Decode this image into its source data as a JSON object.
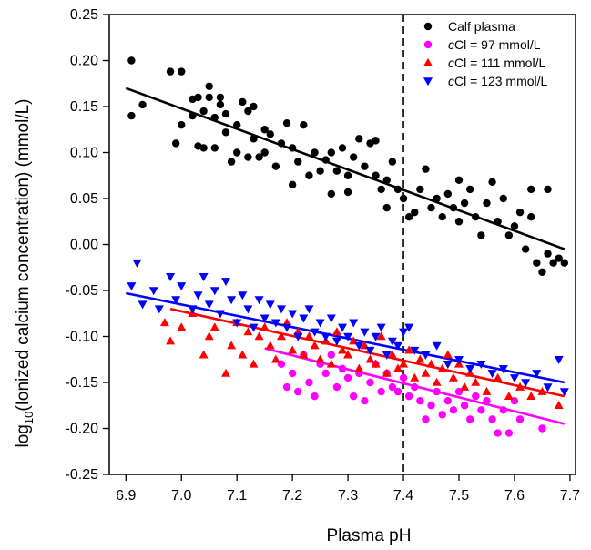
{
  "chart_data": {
    "type": "scatter",
    "xlabel": "Plasma pH",
    "ylabel": {
      "prefix": "log",
      "sub": "10",
      "suffix": "(Ionized calcium concentration) (mmol/L)"
    },
    "xlim": [
      6.87,
      7.71
    ],
    "ylim": [
      -0.25,
      0.25
    ],
    "xticks": [
      "6.9",
      "7.0",
      "7.1",
      "7.2",
      "7.3",
      "7.4",
      "7.5",
      "7.6",
      "7.7"
    ],
    "yticks": [
      "-0.25",
      "-0.20",
      "-0.15",
      "-0.10",
      "-0.05",
      "0.00",
      "0.05",
      "0.10",
      "0.15",
      "0.20",
      "0.25"
    ],
    "grid": false,
    "legend_position": "top-right",
    "reference_line": {
      "x": 7.4,
      "style": "dashed",
      "color": "#000000"
    },
    "series": [
      {
        "legend": {
          "italic": "",
          "text": "Calf plasma"
        },
        "marker": "circle",
        "color": "#000000",
        "fit": {
          "x": [
            6.9,
            7.69
          ],
          "y": [
            0.17,
            -0.005
          ]
        },
        "points": [
          [
            6.91,
            0.2
          ],
          [
            6.91,
            0.14
          ],
          [
            6.93,
            0.152
          ],
          [
            6.98,
            0.188
          ],
          [
            6.99,
            0.11
          ],
          [
            7.0,
            0.188
          ],
          [
            7.0,
            0.13
          ],
          [
            7.02,
            0.14
          ],
          [
            7.02,
            0.158
          ],
          [
            7.03,
            0.107
          ],
          [
            7.03,
            0.16
          ],
          [
            7.04,
            0.105
          ],
          [
            7.04,
            0.145
          ],
          [
            7.05,
            0.172
          ],
          [
            7.05,
            0.16
          ],
          [
            7.06,
            0.105
          ],
          [
            7.06,
            0.138
          ],
          [
            7.07,
            0.16
          ],
          [
            7.07,
            0.152
          ],
          [
            7.08,
            0.122
          ],
          [
            7.08,
            0.142
          ],
          [
            7.09,
            0.09
          ],
          [
            7.1,
            0.1
          ],
          [
            7.1,
            0.13
          ],
          [
            7.11,
            0.155
          ],
          [
            7.12,
            0.095
          ],
          [
            7.12,
            0.145
          ],
          [
            7.13,
            0.15
          ],
          [
            7.13,
            0.115
          ],
          [
            7.14,
            0.095
          ],
          [
            7.15,
            0.125
          ],
          [
            7.15,
            0.1
          ],
          [
            7.16,
            0.12
          ],
          [
            7.17,
            0.085
          ],
          [
            7.18,
            0.11
          ],
          [
            7.19,
            0.132
          ],
          [
            7.2,
            0.105
          ],
          [
            7.2,
            0.065
          ],
          [
            7.21,
            0.09
          ],
          [
            7.22,
            0.13
          ],
          [
            7.23,
            0.075
          ],
          [
            7.24,
            0.1
          ],
          [
            7.25,
            0.08
          ],
          [
            7.26,
            0.092
          ],
          [
            7.27,
            0.1
          ],
          [
            7.27,
            0.055
          ],
          [
            7.28,
            0.08
          ],
          [
            7.29,
            0.105
          ],
          [
            7.3,
            0.075
          ],
          [
            7.3,
            0.057
          ],
          [
            7.31,
            0.095
          ],
          [
            7.32,
            0.115
          ],
          [
            7.33,
            0.085
          ],
          [
            7.34,
            0.11
          ],
          [
            7.35,
            0.113
          ],
          [
            7.35,
            0.075
          ],
          [
            7.36,
            0.06
          ],
          [
            7.37,
            0.07
          ],
          [
            7.37,
            0.04
          ],
          [
            7.38,
            0.09
          ],
          [
            7.39,
            0.06
          ],
          [
            7.4,
            0.05
          ],
          [
            7.41,
            0.03
          ],
          [
            7.42,
            0.035
          ],
          [
            7.43,
            0.06
          ],
          [
            7.44,
            0.082
          ],
          [
            7.45,
            0.04
          ],
          [
            7.46,
            0.05
          ],
          [
            7.47,
            0.03
          ],
          [
            7.48,
            0.055
          ],
          [
            7.49,
            0.04
          ],
          [
            7.5,
            0.07
          ],
          [
            7.5,
            0.025
          ],
          [
            7.51,
            0.045
          ],
          [
            7.52,
            0.06
          ],
          [
            7.53,
            0.03
          ],
          [
            7.54,
            0.01
          ],
          [
            7.55,
            0.045
          ],
          [
            7.56,
            0.068
          ],
          [
            7.57,
            0.025
          ],
          [
            7.58,
            0.05
          ],
          [
            7.59,
            0.01
          ],
          [
            7.6,
            0.02
          ],
          [
            7.61,
            0.035
          ],
          [
            7.62,
            -0.005
          ],
          [
            7.63,
            0.06
          ],
          [
            7.63,
            0.03
          ],
          [
            7.64,
            -0.02
          ],
          [
            7.65,
            -0.03
          ],
          [
            7.66,
            0.06
          ],
          [
            7.66,
            -0.01
          ],
          [
            7.67,
            -0.02
          ],
          [
            7.68,
            -0.015
          ],
          [
            7.69,
            -0.02
          ]
        ]
      },
      {
        "legend": {
          "italic": "c",
          "text": "Cl = 97 mmol/L"
        },
        "marker": "circle",
        "color": "#ff00ff",
        "fit": {
          "x": [
            7.15,
            7.69
          ],
          "y": [
            -0.113,
            -0.195
          ]
        },
        "points": [
          [
            7.18,
            -0.13
          ],
          [
            7.19,
            -0.155
          ],
          [
            7.2,
            -0.14
          ],
          [
            7.21,
            -0.16
          ],
          [
            7.22,
            -0.12
          ],
          [
            7.23,
            -0.15
          ],
          [
            7.24,
            -0.165
          ],
          [
            7.25,
            -0.13
          ],
          [
            7.26,
            -0.14
          ],
          [
            7.27,
            -0.12
          ],
          [
            7.28,
            -0.155
          ],
          [
            7.29,
            -0.135
          ],
          [
            7.3,
            -0.145
          ],
          [
            7.31,
            -0.165
          ],
          [
            7.32,
            -0.14
          ],
          [
            7.33,
            -0.17
          ],
          [
            7.34,
            -0.15
          ],
          [
            7.35,
            -0.13
          ],
          [
            7.36,
            -0.16
          ],
          [
            7.37,
            -0.14
          ],
          [
            7.38,
            -0.155
          ],
          [
            7.39,
            -0.16
          ],
          [
            7.4,
            -0.145
          ],
          [
            7.41,
            -0.165
          ],
          [
            7.42,
            -0.155
          ],
          [
            7.43,
            -0.17
          ],
          [
            7.44,
            -0.19
          ],
          [
            7.45,
            -0.175
          ],
          [
            7.46,
            -0.16
          ],
          [
            7.47,
            -0.185
          ],
          [
            7.48,
            -0.17
          ],
          [
            7.49,
            -0.18
          ],
          [
            7.5,
            -0.16
          ],
          [
            7.51,
            -0.175
          ],
          [
            7.52,
            -0.19
          ],
          [
            7.53,
            -0.165
          ],
          [
            7.54,
            -0.18
          ],
          [
            7.55,
            -0.17
          ],
          [
            7.56,
            -0.19
          ],
          [
            7.57,
            -0.205
          ],
          [
            7.58,
            -0.18
          ],
          [
            7.59,
            -0.205
          ],
          [
            7.6,
            -0.17
          ],
          [
            7.61,
            -0.19
          ],
          [
            7.65,
            -0.2
          ]
        ]
      },
      {
        "legend": {
          "italic": "c",
          "text": "Cl = 111 mmol/L"
        },
        "marker": "triangle-up",
        "color": "#ff0000",
        "fit": {
          "x": [
            6.98,
            7.69
          ],
          "y": [
            -0.07,
            -0.165
          ]
        },
        "points": [
          [
            6.97,
            -0.085
          ],
          [
            6.98,
            -0.105
          ],
          [
            7.0,
            -0.09
          ],
          [
            7.02,
            -0.075
          ],
          [
            7.04,
            -0.12
          ],
          [
            7.05,
            -0.1
          ],
          [
            7.06,
            -0.09
          ],
          [
            7.08,
            -0.14
          ],
          [
            7.09,
            -0.11
          ],
          [
            7.1,
            -0.085
          ],
          [
            7.11,
            -0.12
          ],
          [
            7.12,
            -0.095
          ],
          [
            7.13,
            -0.13
          ],
          [
            7.14,
            -0.1
          ],
          [
            7.15,
            -0.09
          ],
          [
            7.16,
            -0.11
          ],
          [
            7.17,
            -0.125
          ],
          [
            7.18,
            -0.1
          ],
          [
            7.19,
            -0.085
          ],
          [
            7.2,
            -0.115
          ],
          [
            7.21,
            -0.095
          ],
          [
            7.22,
            -0.12
          ],
          [
            7.23,
            -0.1
          ],
          [
            7.24,
            -0.11
          ],
          [
            7.25,
            -0.125
          ],
          [
            7.26,
            -0.105
          ],
          [
            7.27,
            -0.13
          ],
          [
            7.28,
            -0.095
          ],
          [
            7.29,
            -0.115
          ],
          [
            7.3,
            -0.12
          ],
          [
            7.31,
            -0.105
          ],
          [
            7.32,
            -0.135
          ],
          [
            7.33,
            -0.11
          ],
          [
            7.34,
            -0.125
          ],
          [
            7.35,
            -0.13
          ],
          [
            7.36,
            -0.1
          ],
          [
            7.37,
            -0.14
          ],
          [
            7.38,
            -0.12
          ],
          [
            7.39,
            -0.135
          ],
          [
            7.4,
            -0.13
          ],
          [
            7.41,
            -0.115
          ],
          [
            7.42,
            -0.145
          ],
          [
            7.43,
            -0.125
          ],
          [
            7.44,
            -0.14
          ],
          [
            7.45,
            -0.13
          ],
          [
            7.46,
            -0.15
          ],
          [
            7.47,
            -0.135
          ],
          [
            7.48,
            -0.12
          ],
          [
            7.49,
            -0.145
          ],
          [
            7.5,
            -0.13
          ],
          [
            7.51,
            -0.155
          ],
          [
            7.52,
            -0.14
          ],
          [
            7.53,
            -0.15
          ],
          [
            7.55,
            -0.16
          ],
          [
            7.57,
            -0.145
          ],
          [
            7.59,
            -0.165
          ],
          [
            7.61,
            -0.155
          ],
          [
            7.63,
            -0.165
          ],
          [
            7.65,
            -0.16
          ],
          [
            7.68,
            -0.175
          ]
        ]
      },
      {
        "legend": {
          "italic": "c",
          "text": "Cl = 123 mmol/L"
        },
        "marker": "triangle-down",
        "color": "#0000ff",
        "fit": {
          "x": [
            6.9,
            7.69
          ],
          "y": [
            -0.053,
            -0.15
          ]
        },
        "points": [
          [
            6.91,
            -0.045
          ],
          [
            6.92,
            -0.02
          ],
          [
            6.93,
            -0.065
          ],
          [
            6.95,
            -0.05
          ],
          [
            6.96,
            -0.07
          ],
          [
            6.98,
            -0.035
          ],
          [
            6.99,
            -0.06
          ],
          [
            7.0,
            -0.045
          ],
          [
            7.02,
            -0.07
          ],
          [
            7.03,
            -0.055
          ],
          [
            7.04,
            -0.035
          ],
          [
            7.05,
            -0.065
          ],
          [
            7.06,
            -0.05
          ],
          [
            7.07,
            -0.075
          ],
          [
            7.08,
            -0.04
          ],
          [
            7.09,
            -0.06
          ],
          [
            7.1,
            -0.085
          ],
          [
            7.11,
            -0.055
          ],
          [
            7.12,
            -0.07
          ],
          [
            7.13,
            -0.09
          ],
          [
            7.14,
            -0.06
          ],
          [
            7.15,
            -0.08
          ],
          [
            7.16,
            -0.065
          ],
          [
            7.17,
            -0.085
          ],
          [
            7.18,
            -0.07
          ],
          [
            7.19,
            -0.09
          ],
          [
            7.2,
            -0.075
          ],
          [
            7.21,
            -0.1
          ],
          [
            7.22,
            -0.08
          ],
          [
            7.23,
            -0.07
          ],
          [
            7.24,
            -0.095
          ],
          [
            7.25,
            -0.085
          ],
          [
            7.26,
            -0.1
          ],
          [
            7.27,
            -0.08
          ],
          [
            7.28,
            -0.105
          ],
          [
            7.29,
            -0.09
          ],
          [
            7.3,
            -0.1
          ],
          [
            7.31,
            -0.085
          ],
          [
            7.32,
            -0.11
          ],
          [
            7.33,
            -0.095
          ],
          [
            7.34,
            -0.115
          ],
          [
            7.35,
            -0.1
          ],
          [
            7.36,
            -0.09
          ],
          [
            7.37,
            -0.12
          ],
          [
            7.38,
            -0.105
          ],
          [
            7.39,
            -0.11
          ],
          [
            7.4,
            -0.095
          ],
          [
            7.41,
            -0.09
          ],
          [
            7.42,
            -0.115
          ],
          [
            7.44,
            -0.12
          ],
          [
            7.46,
            -0.11
          ],
          [
            7.48,
            -0.13
          ],
          [
            7.5,
            -0.125
          ],
          [
            7.52,
            -0.135
          ],
          [
            7.54,
            -0.13
          ],
          [
            7.56,
            -0.14
          ],
          [
            7.58,
            -0.135
          ],
          [
            7.6,
            -0.145
          ],
          [
            7.62,
            -0.15
          ],
          [
            7.64,
            -0.14
          ],
          [
            7.66,
            -0.155
          ],
          [
            7.68,
            -0.125
          ],
          [
            7.69,
            -0.16
          ]
        ]
      }
    ]
  }
}
